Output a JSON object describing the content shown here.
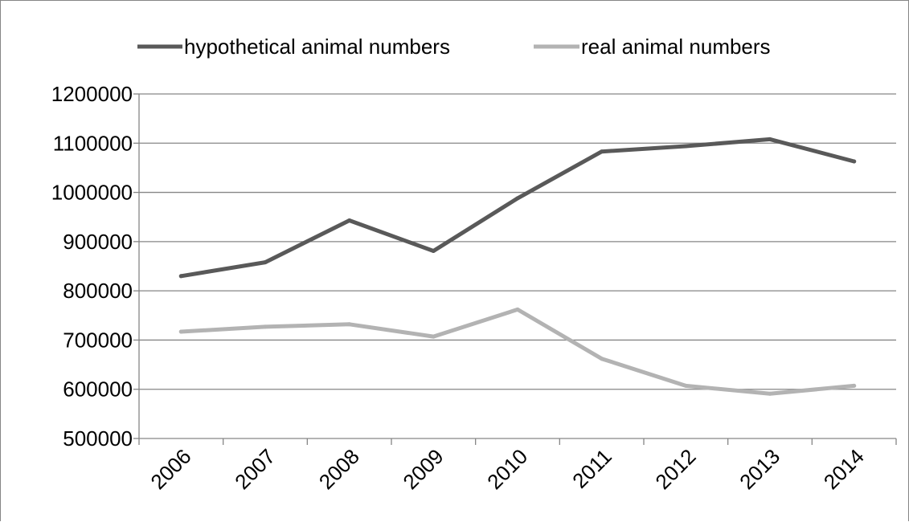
{
  "chart_data": {
    "type": "line",
    "title": "",
    "xlabel": "",
    "ylabel": "",
    "categories": [
      "2006",
      "2007",
      "2008",
      "2009",
      "2010",
      "2011",
      "2012",
      "2013",
      "2014"
    ],
    "series": [
      {
        "name": "hypothetical animal numbers",
        "color": "#595959",
        "values": [
          830000,
          858000,
          943000,
          881000,
          988000,
          1083000,
          1094000,
          1108000,
          1063000
        ]
      },
      {
        "name": "real animal numbers",
        "color": "#b3b3b3",
        "values": [
          717000,
          727000,
          732000,
          707000,
          762000,
          662000,
          607000,
          591000,
          607000
        ]
      }
    ],
    "ylim": [
      500000,
      1200000
    ],
    "yticks": [
      "500000",
      "600000",
      "700000",
      "800000",
      "900000",
      "1000000",
      "1100000",
      "1200000"
    ],
    "grid": "horizontal",
    "legend_position": "top"
  }
}
